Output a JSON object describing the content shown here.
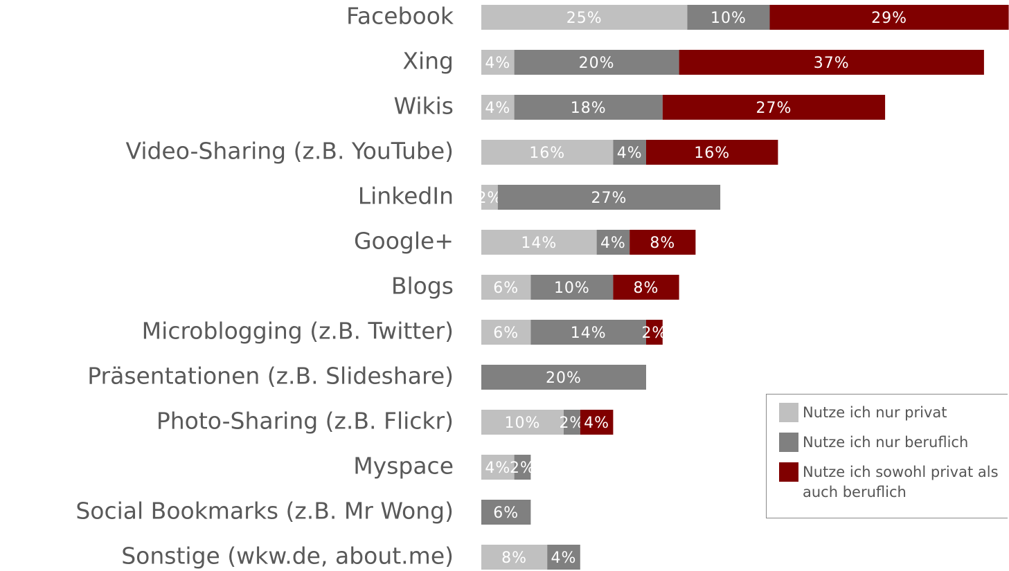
{
  "chart_data": {
    "type": "bar",
    "orientation": "horizontal",
    "stacked": true,
    "categories": [
      "Facebook",
      "Xing",
      "Wikis",
      "Video-Sharing (z.B. YouTube)",
      "LinkedIn",
      "Google+",
      "Blogs",
      "Microblogging (z.B. Twitter)",
      "Präsentationen (z.B. Slideshare)",
      "Photo-Sharing (z.B. Flickr)",
      "Myspace",
      "Social Bookmarks (z.B. Mr Wong)",
      "Sonstige (wkw.de, about.me)"
    ],
    "series": [
      {
        "name": "Nutze ich nur privat",
        "color": "#c0c0c0",
        "values": [
          25,
          4,
          4,
          16,
          2,
          14,
          6,
          6,
          null,
          10,
          4,
          null,
          8
        ],
        "value_labels": [
          "25%",
          "4%",
          "4%",
          "16%",
          "2%",
          "14%",
          "6%",
          "6%",
          null,
          "10%",
          "4%",
          null,
          "8%"
        ]
      },
      {
        "name": "Nutze ich nur beruflich",
        "color": "#808080",
        "values": [
          10,
          20,
          18,
          4,
          27,
          4,
          10,
          14,
          20,
          2,
          2,
          6,
          4
        ],
        "value_labels": [
          "10%",
          "20%",
          "18%",
          "4%",
          "27%",
          "4%",
          "10%",
          "14%",
          "20%",
          "2%",
          "2%",
          "6%",
          "4%"
        ]
      },
      {
        "name": "Nutze ich sowohl privat als auch beruflich",
        "color": "#800000",
        "values": [
          29,
          37,
          27,
          16,
          null,
          8,
          8,
          2,
          null,
          4,
          null,
          null,
          null
        ],
        "value_labels": [
          "29%",
          "37%",
          "27%",
          "16%",
          null,
          "8%",
          "8%",
          "2%",
          null,
          "4%",
          null,
          null,
          null
        ]
      }
    ],
    "legend": "bottom-right"
  }
}
